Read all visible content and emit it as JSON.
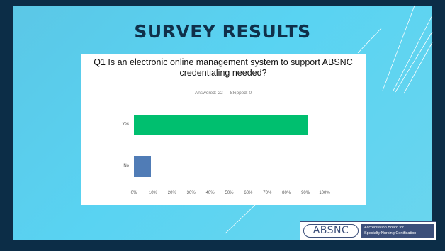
{
  "slide": {
    "title": "SURVEY RESULTS"
  },
  "survey": {
    "question": "Q1 Is an electronic online management system to support ABSNC credentialing needed?",
    "answered": "Answered: 22",
    "skipped": "Skipped: 0"
  },
  "chart_data": {
    "type": "bar",
    "orientation": "horizontal",
    "categories": [
      "Yes",
      "No"
    ],
    "values": [
      91,
      9
    ],
    "unit": "%",
    "xlim": [
      0,
      100
    ],
    "tick_labels": [
      "0%",
      "10%",
      "20%",
      "30%",
      "40%",
      "50%",
      "60%",
      "70%",
      "80%",
      "90%",
      "100%"
    ],
    "colors": [
      "#00bf6f",
      "#507cb6"
    ],
    "grid": false
  },
  "logo": {
    "abbr": "ABSNC",
    "line1": "Accreditation Board for",
    "line2": "Specialty Nursing Certification"
  },
  "colors": {
    "background": "#0c2d47",
    "panel": "#5bc7e6",
    "title": "#10304a",
    "brand": "#3c4f7a"
  }
}
